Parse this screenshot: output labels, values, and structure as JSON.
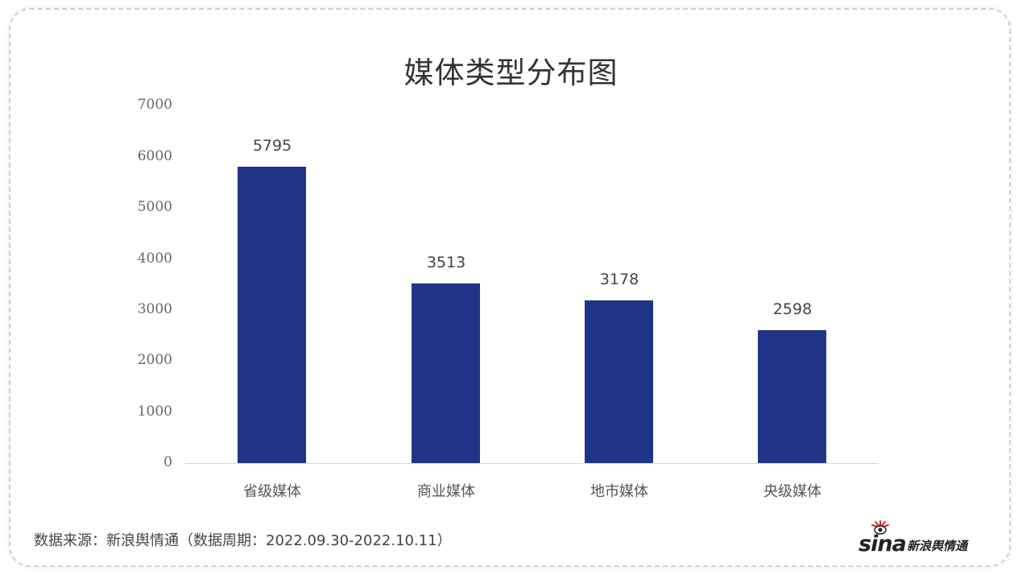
{
  "chart_data": {
    "type": "bar",
    "title": "媒体类型分布图",
    "categories": [
      "省级媒体",
      "商业媒体",
      "地市媒体",
      "央级媒体"
    ],
    "values": [
      5795,
      3513,
      3178,
      2598
    ],
    "xlabel": "",
    "ylabel": "",
    "ylim": [
      0,
      7000
    ],
    "yticks": [
      "0",
      "1000",
      "2000",
      "3000",
      "4000",
      "5000",
      "6000",
      "7000"
    ],
    "data_labels": [
      "5795",
      "3513",
      "3178",
      "2598"
    ],
    "grid": false,
    "legend": null,
    "bar_color": "#203588"
  },
  "footer": {
    "source": "数据来源：新浪舆情通（数据周期：2022.09.30-2022.10.11）"
  },
  "logo": {
    "brand": "sina",
    "text": "新浪舆情通",
    "accent": "#e02020"
  }
}
